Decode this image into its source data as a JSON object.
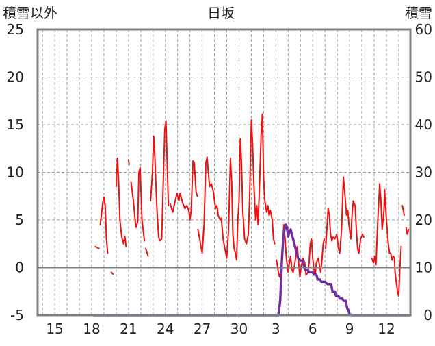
{
  "chart_data": {
    "type": "line",
    "title": "日坂",
    "left_axis_label": "積雪以外",
    "right_axis_label": "積雪",
    "left_ylim": [
      -5,
      25
    ],
    "left_yticks": [
      -5,
      0,
      5,
      10,
      15,
      20,
      25
    ],
    "right_ylim": [
      0,
      60
    ],
    "right_yticks": [
      0,
      10,
      20,
      30,
      40,
      50,
      60
    ],
    "x_tick_labels": [
      "15",
      "18",
      "21",
      "24",
      "27",
      "30",
      "3",
      "6",
      "9",
      "12"
    ],
    "grid": "dashed",
    "colors": {
      "red_series": "#ee1111",
      "purple_series": "#7030a0",
      "frame": "#7f7f7f",
      "zero_line": "#7f7f7f"
    },
    "series": [
      {
        "axis": "left",
        "color": "#ee1111",
        "segments": [
          [
            [
              18.3,
              2.2
            ],
            [
              18.6,
              2.0
            ]
          ],
          [
            [
              18.7,
              4.5
            ],
            [
              18.9,
              6.8
            ],
            [
              19.0,
              7.4
            ],
            [
              19.1,
              6.5
            ],
            [
              19.2,
              3.0
            ],
            [
              19.3,
              1.5
            ]
          ],
          [
            [
              19.6,
              -0.5
            ],
            [
              19.75,
              -0.7
            ]
          ],
          [
            [
              20.0,
              8.5
            ],
            [
              20.1,
              11.5
            ],
            [
              20.2,
              9.0
            ],
            [
              20.3,
              5.0
            ],
            [
              20.45,
              3.2
            ],
            [
              20.6,
              2.5
            ],
            [
              20.7,
              3.3
            ],
            [
              20.8,
              2.2
            ]
          ],
          [
            [
              21.0,
              11.3
            ],
            [
              21.05,
              10.8
            ]
          ],
          [
            [
              21.2,
              9.0
            ],
            [
              21.4,
              7.0
            ],
            [
              21.5,
              5.5
            ],
            [
              21.6,
              4.2
            ],
            [
              21.75,
              4.8
            ],
            [
              21.85,
              10.0
            ],
            [
              21.95,
              10.5
            ],
            [
              22.1,
              5.0
            ],
            [
              22.3,
              2.8
            ]
          ],
          [
            [
              22.4,
              2.0
            ],
            [
              22.6,
              1.2
            ]
          ],
          [
            [
              22.8,
              7.0
            ],
            [
              22.95,
              10.0
            ],
            [
              23.05,
              13.8
            ],
            [
              23.15,
              11.5
            ],
            [
              23.3,
              6.5
            ],
            [
              23.45,
              3.2
            ],
            [
              23.55,
              2.8
            ],
            [
              23.7,
              3.0
            ],
            [
              23.85,
              10.0
            ],
            [
              23.95,
              14.5
            ],
            [
              24.05,
              15.4
            ],
            [
              24.15,
              11.0
            ],
            [
              24.25,
              6.5
            ]
          ],
          [
            [
              24.4,
              6.7
            ],
            [
              24.6,
              5.8
            ],
            [
              24.8,
              7.0
            ],
            [
              24.95,
              7.8
            ],
            [
              25.1,
              7.0
            ],
            [
              25.2,
              7.8
            ],
            [
              25.4,
              6.8
            ],
            [
              25.6,
              6.2
            ],
            [
              25.75,
              6.5
            ],
            [
              25.9,
              6.0
            ],
            [
              26.0,
              5.0
            ],
            [
              26.1,
              6.0
            ],
            [
              26.25,
              11.2
            ],
            [
              26.35,
              11.0
            ],
            [
              26.5,
              8.0
            ],
            [
              26.6,
              7.5
            ]
          ],
          [
            [
              26.65,
              4.0
            ],
            [
              26.8,
              3.0
            ],
            [
              26.9,
              2.2
            ],
            [
              27.0,
              1.5
            ],
            [
              27.15,
              4.5
            ],
            [
              27.3,
              11.0
            ],
            [
              27.4,
              11.6
            ],
            [
              27.5,
              10.0
            ],
            [
              27.6,
              8.5
            ],
            [
              27.75,
              8.8
            ],
            [
              27.9,
              8.0
            ],
            [
              28.0,
              7.0
            ],
            [
              28.1,
              6.2
            ],
            [
              28.2,
              6.5
            ],
            [
              28.3,
              5.5
            ],
            [
              28.45,
              5.0
            ],
            [
              28.55,
              5.2
            ],
            [
              28.7,
              3.0
            ],
            [
              28.85,
              2.0
            ],
            [
              29.0,
              1.0
            ],
            [
              29.15,
              4.0
            ],
            [
              29.3,
              11.5
            ],
            [
              29.4,
              9.0
            ],
            [
              29.5,
              3.5
            ],
            [
              29.6,
              2.0
            ],
            [
              29.7,
              1.5
            ],
            [
              29.8,
              0.8
            ],
            [
              29.9,
              5.0
            ],
            [
              30.0,
              7.0
            ],
            [
              30.1,
              13.5
            ],
            [
              30.2,
              11.0
            ],
            [
              30.3,
              6.0
            ],
            [
              30.45,
              3.0
            ],
            [
              30.6,
              2.5
            ],
            [
              30.75,
              3.5
            ],
            [
              30.85,
              7.0
            ],
            [
              31.0,
              15.5
            ],
            [
              31.1,
              13.0
            ],
            [
              31.2,
              9.0
            ],
            [
              31.35,
              5.0
            ],
            [
              31.45,
              6.5
            ],
            [
              31.55,
              4.5
            ],
            [
              31.65,
              8.0
            ],
            [
              31.8,
              14.0
            ],
            [
              31.9,
              16.1
            ],
            [
              32.0,
              9.5
            ],
            [
              32.1,
              7.0
            ],
            [
              32.25,
              5.8
            ],
            [
              32.35,
              6.5
            ],
            [
              32.45,
              5.5
            ],
            [
              32.55,
              6.0
            ],
            [
              32.7,
              5.0
            ],
            [
              32.8,
              3.0
            ],
            [
              32.9,
              2.5
            ]
          ],
          [
            [
              33.05,
              0.8
            ],
            [
              33.2,
              -0.5
            ],
            [
              33.3,
              -1.0
            ],
            [
              33.45,
              0.0
            ],
            [
              33.55,
              2.5
            ],
            [
              33.65,
              4.5
            ],
            [
              33.75,
              3.0
            ],
            [
              33.85,
              1.0
            ],
            [
              34.0,
              -0.5
            ],
            [
              34.1,
              0.5
            ],
            [
              34.2,
              1.2
            ],
            [
              34.3,
              -0.2
            ],
            [
              34.4,
              -0.5
            ],
            [
              34.55,
              0.5
            ],
            [
              34.65,
              1.5
            ],
            [
              34.75,
              2.2
            ],
            [
              34.85,
              0.5
            ],
            [
              34.95,
              -1.0
            ],
            [
              35.05,
              0.0
            ],
            [
              35.2,
              1.0
            ],
            [
              35.35,
              0.5
            ],
            [
              35.45,
              -0.8
            ],
            [
              35.6,
              -0.5
            ],
            [
              35.7,
              0.5
            ],
            [
              35.8,
              2.5
            ],
            [
              35.9,
              3.0
            ],
            [
              36.0,
              1.0
            ],
            [
              36.1,
              -0.2
            ],
            [
              36.2,
              -0.8
            ],
            [
              36.3,
              0.5
            ],
            [
              36.45,
              1.0
            ],
            [
              36.55,
              0.2
            ],
            [
              36.65,
              -0.5
            ],
            [
              36.75,
              0.8
            ],
            [
              36.85,
              2.5
            ],
            [
              36.95,
              3.0
            ]
          ],
          [
            [
              37.05,
              2.0
            ],
            [
              37.15,
              4.0
            ],
            [
              37.25,
              6.2
            ],
            [
              37.35,
              5.5
            ],
            [
              37.45,
              3.5
            ],
            [
              37.55,
              2.8
            ],
            [
              37.65,
              3.2
            ],
            [
              37.8,
              3.0
            ],
            [
              37.95,
              3.5
            ],
            [
              38.1,
              2.0
            ],
            [
              38.2,
              1.5
            ],
            [
              38.35,
              4.0
            ],
            [
              38.5,
              9.5
            ],
            [
              38.6,
              8.0
            ],
            [
              38.75,
              5.5
            ],
            [
              38.85,
              6.0
            ],
            [
              38.95,
              4.5
            ],
            [
              39.1,
              3.0
            ],
            [
              39.2,
              5.5
            ],
            [
              39.3,
              7.0
            ],
            [
              39.45,
              6.5
            ],
            [
              39.55,
              4.0
            ],
            [
              39.65,
              2.0
            ],
            [
              39.75,
              1.5
            ],
            [
              39.9,
              3.0
            ],
            [
              40.05,
              3.5
            ],
            [
              40.15,
              3.2
            ]
          ],
          [
            [
              40.8,
              1.0
            ],
            [
              40.95,
              0.5
            ],
            [
              41.05,
              1.2
            ],
            [
              41.15,
              0.3
            ],
            [
              41.3,
              5.0
            ],
            [
              41.45,
              8.8
            ],
            [
              41.55,
              7.0
            ],
            [
              41.65,
              4.0
            ],
            [
              41.8,
              6.0
            ],
            [
              41.85,
              8.2
            ],
            [
              42.0,
              5.0
            ],
            [
              42.15,
              2.5
            ],
            [
              42.25,
              1.5
            ],
            [
              42.35,
              1.5
            ],
            [
              42.45,
              0.8
            ],
            [
              42.55,
              1.2
            ],
            [
              42.65,
              1.0
            ],
            [
              42.7,
              -0.5
            ],
            [
              42.8,
              -1.5
            ],
            [
              42.9,
              -2.5
            ],
            [
              43.0,
              -3.0
            ],
            [
              43.1,
              0.0
            ],
            [
              43.2,
              2.2
            ]
          ],
          [
            [
              43.3,
              6.5
            ],
            [
              43.45,
              5.5
            ]
          ],
          [
            [
              43.6,
              4.2
            ],
            [
              43.7,
              3.5
            ],
            [
              43.8,
              4.0
            ]
          ]
        ]
      },
      {
        "axis": "right",
        "color": "#7030a0",
        "segments": [
          [
            [
              18.2,
              0
            ],
            [
              33.2,
              0
            ],
            [
              33.35,
              3
            ],
            [
              33.5,
              12
            ],
            [
              33.6,
              16
            ],
            [
              33.7,
              18
            ],
            [
              33.8,
              19
            ],
            [
              33.9,
              18.5
            ],
            [
              34.0,
              16.5
            ],
            [
              34.1,
              17.5
            ],
            [
              34.2,
              18
            ],
            [
              34.3,
              17
            ],
            [
              34.4,
              16
            ],
            [
              34.5,
              15
            ],
            [
              34.6,
              14
            ],
            [
              34.7,
              13
            ],
            [
              34.8,
              12
            ],
            [
              35.0,
              11.5
            ],
            [
              35.2,
              11.5
            ],
            [
              35.3,
              10
            ],
            [
              35.4,
              9.5
            ],
            [
              35.6,
              9.5
            ],
            [
              35.7,
              9
            ],
            [
              36.0,
              9
            ],
            [
              36.1,
              8.5
            ],
            [
              36.3,
              8.5
            ],
            [
              36.4,
              7.5
            ],
            [
              36.6,
              7.5
            ],
            [
              36.7,
              7
            ],
            [
              37.0,
              7
            ],
            [
              37.2,
              6.5
            ],
            [
              37.5,
              6.5
            ],
            [
              37.6,
              5
            ],
            [
              37.8,
              5
            ],
            [
              37.9,
              4
            ],
            [
              38.1,
              4
            ],
            [
              38.2,
              3.5
            ],
            [
              38.4,
              3.5
            ],
            [
              38.5,
              3
            ],
            [
              38.7,
              3
            ],
            [
              38.8,
              1.5
            ],
            [
              38.9,
              1
            ],
            [
              39.0,
              0.2
            ],
            [
              39.2,
              0
            ],
            [
              43.95,
              0
            ]
          ]
        ]
      }
    ]
  }
}
